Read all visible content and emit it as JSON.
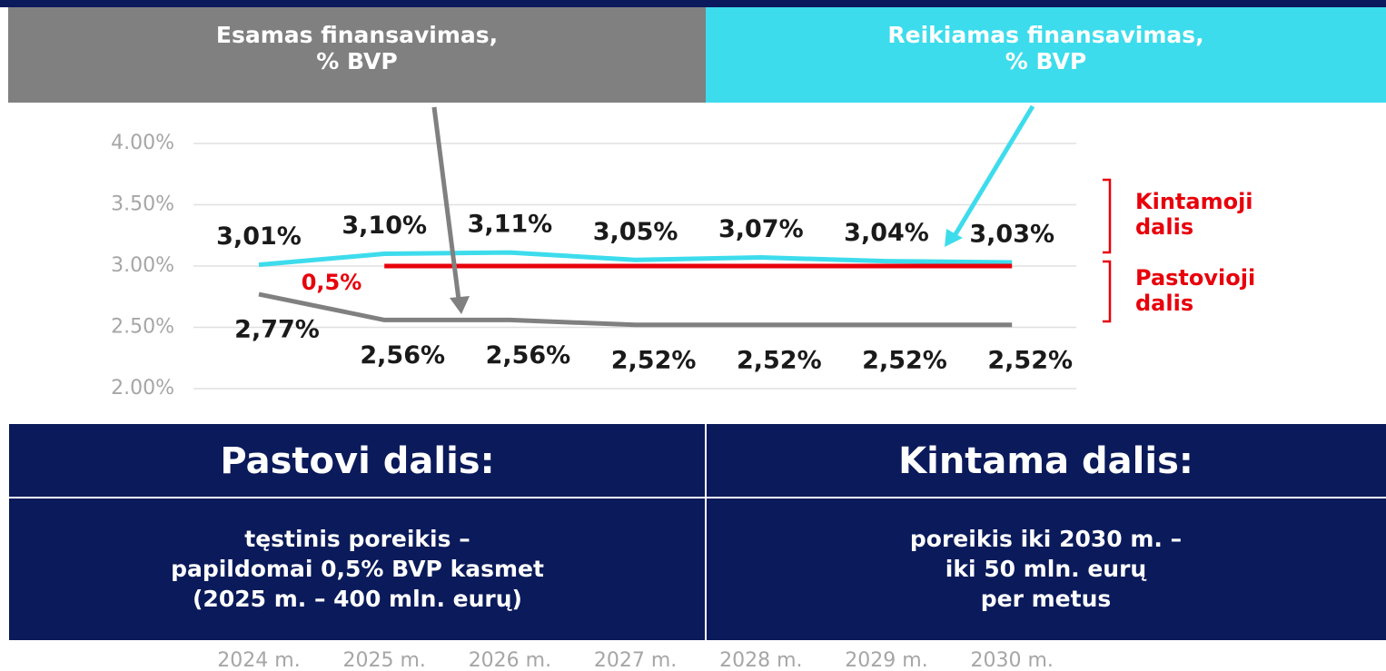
{
  "chart_data": {
    "type": "line",
    "categories": [
      "2024 m.",
      "2025 m.",
      "2026 m.",
      "2027 m.",
      "2028 m.",
      "2029 m.",
      "2030 m."
    ],
    "series": [
      {
        "name": "Reikiamas finansavimas,\n% BVP",
        "color": "#3ddcec",
        "values": [
          3.01,
          3.1,
          3.11,
          3.05,
          3.07,
          3.04,
          3.03
        ],
        "value_labels": [
          "3,01%",
          "3,10%",
          "3,11%",
          "3,05%",
          "3,07%",
          "3,04%",
          "3,03%"
        ]
      },
      {
        "name": "Esamas finansavimas,\n% BVP",
        "color": "#808080",
        "values": [
          2.77,
          2.56,
          2.56,
          2.52,
          2.52,
          2.52,
          2.52
        ],
        "value_labels": [
          "2,77%",
          "2,56%",
          "2,56%",
          "2,52%",
          "2,52%",
          "2,52%",
          "2,52%"
        ]
      },
      {
        "color": "#e8000b",
        "values": [
          null,
          3.0,
          3.0,
          3.0,
          3.0,
          3.0,
          3.0
        ]
      }
    ],
    "ylim": [
      2.0,
      4.0
    ],
    "yticks": [
      {
        "value": 2.0,
        "label": "2.00%"
      },
      {
        "value": 2.5,
        "label": "2.50%"
      },
      {
        "value": 3.0,
        "label": "3.00%"
      },
      {
        "value": 3.5,
        "label": "3.50%"
      },
      {
        "value": 4.0,
        "label": "4.00%"
      }
    ],
    "grid": true,
    "annotations": [
      "0,5%",
      "Kintamoji\ndalis",
      "Pastovioji\ndalis"
    ]
  },
  "panels": [
    {
      "title": "Pastovi dalis:",
      "text": "tęstinis poreikis –\npapildomai 0,5% BVP kasmet\n(2025 m. – 400 mln. eurų)"
    },
    {
      "title": "Kintama dalis:",
      "text": "poreikis iki 2030 m. –\niki 50 mln. eurų\nper metus"
    }
  ]
}
